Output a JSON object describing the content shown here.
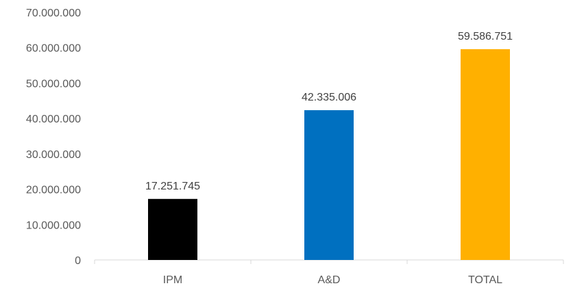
{
  "chart_data": {
    "type": "bar",
    "categories": [
      "IPM",
      "A&D",
      "TOTAL"
    ],
    "values": [
      17251745,
      42335006,
      59586751
    ],
    "value_labels": [
      "17.251.745",
      "42.335.006",
      "59.586.751"
    ],
    "bar_colors": [
      "#000000",
      "#0070C0",
      "#FFB000"
    ],
    "ylim": [
      0,
      70000000
    ],
    "yticks": [
      0,
      10000000,
      20000000,
      30000000,
      40000000,
      50000000,
      60000000,
      70000000
    ],
    "ytick_labels": [
      "0",
      "10.000.000",
      "20.000.000",
      "30.000.000",
      "40.000.000",
      "50.000.000",
      "60.000.000",
      "70.000.000"
    ],
    "grid": false,
    "legend": "none"
  }
}
